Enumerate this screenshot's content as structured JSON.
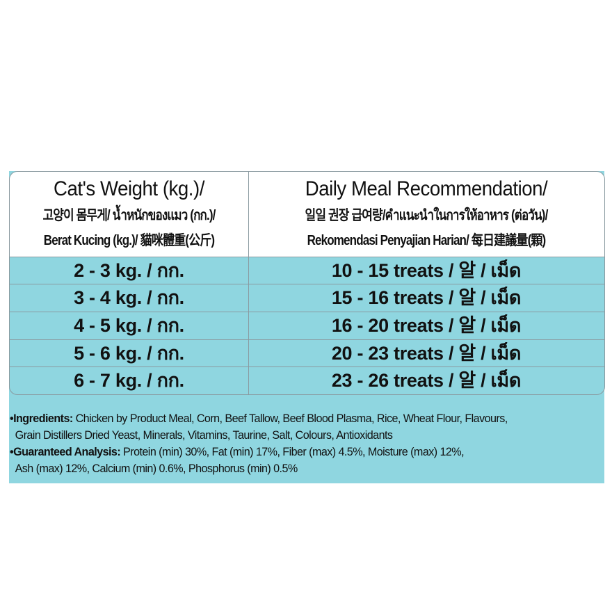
{
  "header": {
    "left": [
      "Cat's Weight (kg.)/",
      "고양이 몸무게/ น้ำหนักของแมว (กก.)/",
      "Berat Kucing (kg.)/ 貓咪體重(公斤)"
    ],
    "right": [
      "Daily Meal Recommendation/",
      "일일 권장 급여량/คำแนะนำในการให้อาหาร (ต่อวัน)/",
      "Rekomendasi Penyajian Harian/ 每日建議量(顆)"
    ]
  },
  "rows": [
    {
      "weight": "2 - 3 kg. / กก.",
      "treats": "10 - 15 treats / 알 / เม็ด"
    },
    {
      "weight": "3 - 4 kg. / กก.",
      "treats": "15 - 16 treats / 알 / เม็ด"
    },
    {
      "weight": "4 - 5 kg. / กก.",
      "treats": "16 - 20 treats / 알 / เม็ด"
    },
    {
      "weight": "5 - 6 kg. / กก.",
      "treats": "20 - 23 treats / 알 / เม็ด"
    },
    {
      "weight": "6 - 7 kg. / กก.",
      "treats": "23 - 26 treats / 알 / เม็ด"
    }
  ],
  "ingredients": {
    "label": "•Ingredients:",
    "line1": " Chicken by Product Meal, Corn, Beef Tallow, Beef Blood Plasma, Rice, Wheat Flour, Flavours,",
    "line2": "Grain Distillers Dried Yeast, Minerals, Vitamins, Taurine, Salt, Colours, Antioxidants"
  },
  "analysis": {
    "label": "•Guaranteed Analysis:",
    "line1": " Protein (min) 30%, Fat (min) 17%, Fiber (max) 4.5%, Moisture (max) 12%,",
    "line2": "Ash (max) 12%, Calcium (min) 0.6%, Phosphorus (min) 0.5%"
  },
  "colors": {
    "teal": "#8fd6e0",
    "border": "#8a9aa0"
  }
}
